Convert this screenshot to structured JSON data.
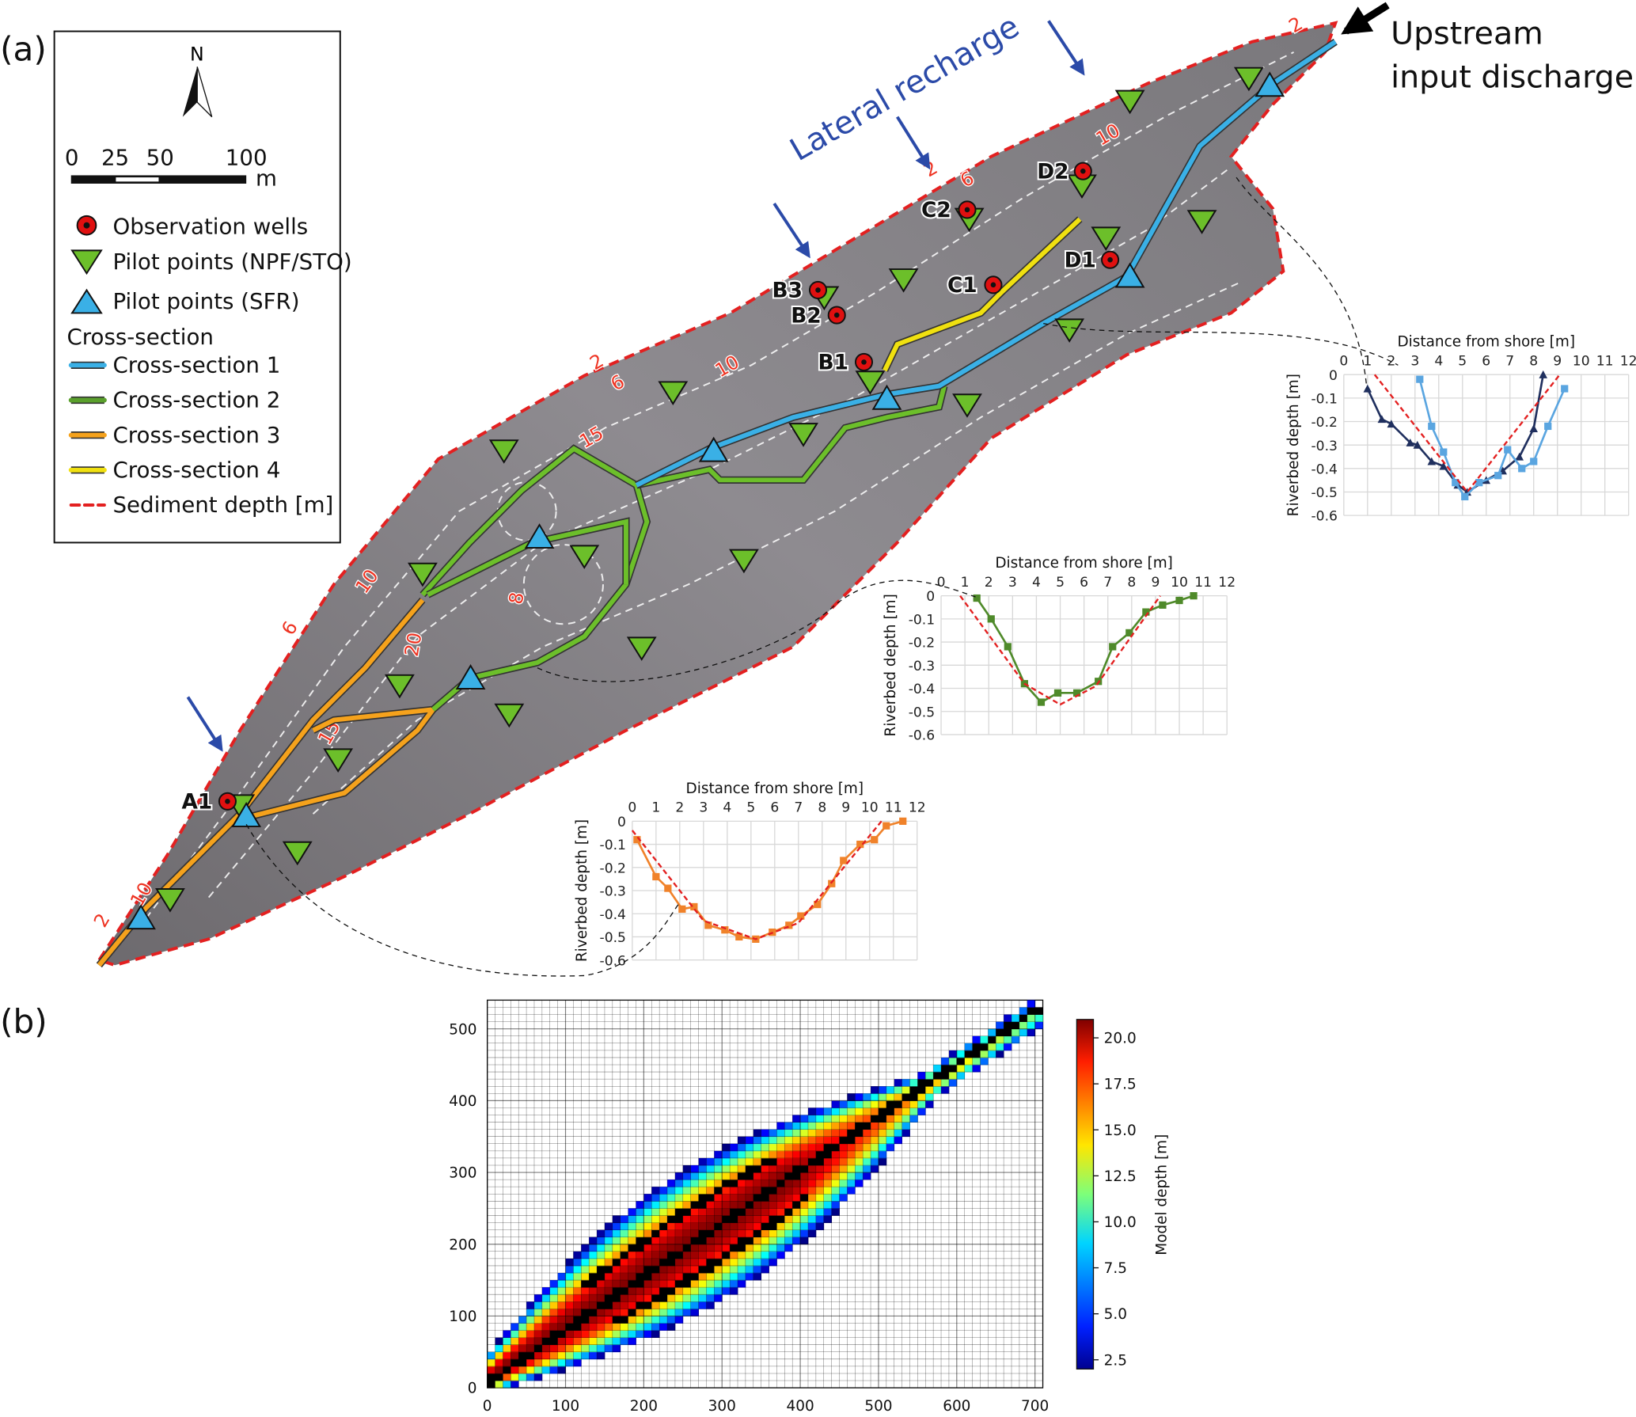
{
  "panels": {
    "a": "(a)",
    "b": "(b)"
  },
  "annotations": {
    "lateral_recharge": "Lateral recharge",
    "upstream_line1": "Upstream",
    "upstream_line2": "input discharge"
  },
  "legend": {
    "north": "N",
    "scale_labels": [
      "0",
      "25",
      "50",
      "100"
    ],
    "scale_unit": "m",
    "items": [
      {
        "label": "Observation wells",
        "symbol": "red-circle-dot",
        "color": "#e01010"
      },
      {
        "label": "Pilot points (NPF/STO)",
        "symbol": "down-triangle",
        "color": "#6cbf2a"
      },
      {
        "label": "Pilot points (SFR)",
        "symbol": "up-triangle",
        "color": "#3ab0e6"
      }
    ],
    "cross_section_header": "Cross-section",
    "lines": [
      {
        "label": "Cross-section 1",
        "color": "#3ab0e6"
      },
      {
        "label": "Cross-section 2",
        "color": "#5aa02c"
      },
      {
        "label": "Cross-section 3",
        "color": "#f5a21c"
      },
      {
        "label": "Cross-section 4",
        "color": "#f0e010"
      },
      {
        "label": "Sediment depth [m]",
        "color": "#e32020",
        "dashed": true
      }
    ]
  },
  "wells": [
    "A1",
    "B1",
    "B2",
    "B3",
    "C1",
    "C2",
    "D1",
    "D2"
  ],
  "contour_labels": [
    "2",
    "6",
    "10",
    "2",
    "6",
    "10",
    "15",
    "2",
    "6",
    "10",
    "15",
    "20",
    "8",
    "2",
    "10",
    "2",
    "6",
    "10"
  ],
  "chart_data": [
    {
      "type": "line",
      "name": "cross-section-1-profile",
      "xlabel": "Distance from shore [m]",
      "ylabel": "Riverbed depth [m]",
      "xlim": [
        0,
        12
      ],
      "ylim": [
        -0.6,
        0
      ],
      "grid": true,
      "xticks": [
        "0",
        "1",
        "2",
        "3",
        "4",
        "5",
        "6",
        "7",
        "8",
        "9",
        "10",
        "11",
        "12"
      ],
      "yticks": [
        "0",
        "-0.1",
        "-0.2",
        "-0.3",
        "-0.4",
        "-0.5",
        "-0.6"
      ],
      "series": [
        {
          "color": "#1f2f5e",
          "marker": "triangle",
          "x": [
            1,
            1.6,
            2,
            2.8,
            3.1,
            3.7,
            4.2,
            4.8,
            5.2,
            6,
            6.7,
            7.4,
            8,
            8.4
          ],
          "y": [
            -0.06,
            -0.19,
            -0.21,
            -0.29,
            -0.3,
            -0.37,
            -0.39,
            -0.47,
            -0.5,
            -0.45,
            -0.41,
            -0.35,
            -0.23,
            0
          ]
        },
        {
          "color": "#5aa5e0",
          "marker": "square",
          "x": [
            3.2,
            3.7,
            4.2,
            4.7,
            5.1,
            5.7,
            6.5,
            6.9,
            7.5,
            8,
            8.6,
            9.3
          ],
          "y": [
            -0.02,
            -0.22,
            -0.33,
            -0.46,
            -0.52,
            -0.46,
            -0.43,
            -0.32,
            -0.4,
            -0.37,
            -0.22,
            -0.06
          ]
        },
        {
          "color": "#e32020",
          "marker": "none",
          "dashed": true,
          "x": [
            1.3,
            5.2,
            9.1
          ],
          "y": [
            0,
            -0.5,
            0
          ]
        }
      ]
    },
    {
      "type": "line",
      "name": "cross-section-2-profile",
      "xlabel": "Distance from shore [m]",
      "ylabel": "Riverbed depth [m]",
      "xlim": [
        0,
        12
      ],
      "ylim": [
        -0.6,
        0
      ],
      "grid": true,
      "xticks": [
        "0",
        "1",
        "2",
        "3",
        "4",
        "5",
        "6",
        "7",
        "8",
        "9",
        "10",
        "11",
        "12"
      ],
      "yticks": [
        "0",
        "-0.1",
        "-0.2",
        "-0.3",
        "-0.4",
        "-0.5",
        "-0.6"
      ],
      "series": [
        {
          "color": "#4f8a2a",
          "marker": "square",
          "x": [
            1.5,
            2.1,
            2.8,
            3.5,
            4.2,
            4.9,
            5.7,
            6.6,
            7.2,
            7.9,
            8.6,
            9.3,
            10,
            10.6
          ],
          "y": [
            -0.01,
            -0.1,
            -0.22,
            -0.38,
            -0.46,
            -0.42,
            -0.42,
            -0.37,
            -0.22,
            -0.16,
            -0.07,
            -0.04,
            -0.02,
            0
          ]
        },
        {
          "color": "#e32020",
          "marker": "none",
          "dashed": true,
          "x": [
            0.8,
            3.5,
            5,
            6.5,
            9.2
          ],
          "y": [
            0,
            -0.38,
            -0.47,
            -0.39,
            0
          ]
        }
      ]
    },
    {
      "type": "line",
      "name": "cross-section-3-profile",
      "xlabel": "Distance from shore [m]",
      "ylabel": "Riverbed depth [m]",
      "xlim": [
        0,
        12
      ],
      "ylim": [
        -0.6,
        0
      ],
      "grid": true,
      "xticks": [
        "0",
        "1",
        "2",
        "3",
        "4",
        "5",
        "6",
        "7",
        "8",
        "9",
        "10",
        "11",
        "12"
      ],
      "yticks": [
        "0",
        "-0.1",
        "-0.2",
        "-0.3",
        "-0.4",
        "-0.5",
        "-0.6"
      ],
      "series": [
        {
          "color": "#f0822a",
          "marker": "square",
          "x": [
            0.2,
            1,
            1.5,
            2.1,
            2.6,
            3.2,
            3.9,
            4.5,
            5.2,
            5.9,
            6.6,
            7.1,
            7.8,
            8.4,
            8.9,
            9.6,
            10.2,
            10.7,
            11.4
          ],
          "y": [
            -0.08,
            -0.24,
            -0.29,
            -0.38,
            -0.37,
            -0.45,
            -0.47,
            -0.5,
            -0.51,
            -0.48,
            -0.45,
            -0.41,
            -0.36,
            -0.27,
            -0.17,
            -0.1,
            -0.08,
            -0.02,
            0
          ]
        },
        {
          "color": "#e32020",
          "marker": "none",
          "dashed": true,
          "x": [
            0,
            3,
            5.2,
            7,
            10.5
          ],
          "y": [
            -0.04,
            -0.43,
            -0.51,
            -0.44,
            0
          ]
        }
      ]
    },
    {
      "type": "heatmap",
      "name": "model-depth-grid",
      "xlim": [
        0,
        710
      ],
      "ylim": [
        0,
        540
      ],
      "xticks": [
        "0",
        "100",
        "200",
        "300",
        "400",
        "500",
        "600",
        "700"
      ],
      "yticks": [
        "0",
        "100",
        "200",
        "300",
        "400",
        "500"
      ],
      "colorbar": {
        "label": "Model depth [m]",
        "range": [
          2,
          21
        ],
        "ticks": [
          "2.5",
          "5.0",
          "7.5",
          "10.0",
          "12.5",
          "15.0",
          "17.5",
          "20.0"
        ],
        "colormap": "jet"
      },
      "river_cells_color": "#000000",
      "grid": true
    }
  ]
}
